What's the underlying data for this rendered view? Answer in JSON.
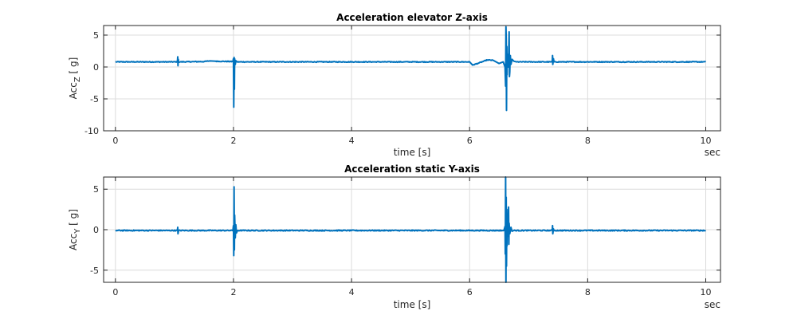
{
  "colors": {
    "line": "#0072BD",
    "grid": "#dcdcdc",
    "axis": "#262626",
    "background": "#ffffff"
  },
  "chart_data": [
    {
      "type": "line",
      "title": "Acceleration elevator Z-axis",
      "xlabel": "time [s]",
      "ylabel_base": "Acc",
      "ylabel_sub": "Z",
      "ylabel_unit": " [ g]",
      "x_unit_label": "sec",
      "xlim": [
        -0.2,
        10.25
      ],
      "ylim": [
        -10,
        6.5
      ],
      "xticks": [
        0,
        2,
        4,
        6,
        8,
        10
      ],
      "yticks": [
        -10,
        -5,
        0,
        5
      ],
      "grid": true,
      "series": [
        {
          "baseline": 0.8,
          "noise": 0.06,
          "points": [
            [
              0,
              0.8
            ],
            [
              1.05,
              0.8
            ],
            [
              1.055,
              1.6
            ],
            [
              1.06,
              0.2
            ],
            [
              1.065,
              1.2
            ],
            [
              1.07,
              0.8
            ],
            [
              1.5,
              0.85
            ],
            [
              1.6,
              0.95
            ],
            [
              1.7,
              0.9
            ],
            [
              1.99,
              0.85
            ],
            [
              2.0,
              1.3
            ],
            [
              2.005,
              -6.3
            ],
            [
              2.01,
              1.5
            ],
            [
              2.015,
              -3.5
            ],
            [
              2.02,
              1.3
            ],
            [
              2.03,
              0.4
            ],
            [
              2.04,
              1.0
            ],
            [
              2.06,
              0.8
            ],
            [
              6.0,
              0.8
            ],
            [
              6.05,
              0.3
            ],
            [
              6.15,
              0.6
            ],
            [
              6.3,
              1.1
            ],
            [
              6.4,
              1.05
            ],
            [
              6.5,
              0.55
            ],
            [
              6.57,
              0.8
            ],
            [
              6.6,
              0.0
            ],
            [
              6.61,
              -3.0
            ],
            [
              6.615,
              6.3
            ],
            [
              6.62,
              4.5
            ],
            [
              6.625,
              -6.8
            ],
            [
              6.63,
              3.2
            ],
            [
              6.635,
              -1.2
            ],
            [
              6.64,
              2.0
            ],
            [
              6.65,
              0.0
            ],
            [
              6.66,
              1.2
            ],
            [
              6.67,
              5.5
            ],
            [
              6.675,
              -1.5
            ],
            [
              6.68,
              -0.8
            ],
            [
              6.685,
              1.0
            ],
            [
              6.69,
              1.8
            ],
            [
              6.7,
              0.4
            ],
            [
              6.72,
              1.2
            ],
            [
              6.75,
              0.9
            ],
            [
              6.8,
              0.8
            ],
            [
              7.4,
              0.8
            ],
            [
              7.405,
              1.8
            ],
            [
              7.41,
              0.4
            ],
            [
              7.42,
              1.3
            ],
            [
              7.43,
              0.8
            ],
            [
              10.0,
              0.8
            ]
          ]
        }
      ]
    },
    {
      "type": "line",
      "title": "Acceleration static Y-axis",
      "xlabel": "time [s]",
      "ylabel_base": "Acc",
      "ylabel_sub": "Y",
      "ylabel_unit": " [ g]",
      "x_unit_label": "sec",
      "xlim": [
        -0.2,
        10.25
      ],
      "ylim": [
        -6.5,
        6.5
      ],
      "xticks": [
        0,
        2,
        4,
        6,
        8,
        10
      ],
      "yticks": [
        -5,
        0,
        5
      ],
      "grid": true,
      "series": [
        {
          "baseline": -0.1,
          "noise": 0.06,
          "points": [
            [
              0,
              -0.1
            ],
            [
              1.05,
              -0.1
            ],
            [
              1.055,
              0.3
            ],
            [
              1.06,
              -0.5
            ],
            [
              1.07,
              -0.1
            ],
            [
              1.99,
              -0.1
            ],
            [
              2.0,
              0.5
            ],
            [
              2.005,
              -3.2
            ],
            [
              2.01,
              5.3
            ],
            [
              2.015,
              -2.5
            ],
            [
              2.02,
              1.8
            ],
            [
              2.03,
              -1.0
            ],
            [
              2.04,
              0.6
            ],
            [
              2.05,
              -0.4
            ],
            [
              2.07,
              -0.1
            ],
            [
              6.58,
              -0.1
            ],
            [
              6.6,
              0.4
            ],
            [
              6.605,
              -3.0
            ],
            [
              6.61,
              6.5
            ],
            [
              6.615,
              -6.5
            ],
            [
              6.62,
              4.0
            ],
            [
              6.625,
              -4.5
            ],
            [
              6.63,
              2.5
            ],
            [
              6.635,
              -2.0
            ],
            [
              6.64,
              1.5
            ],
            [
              6.65,
              -0.8
            ],
            [
              6.66,
              2.8
            ],
            [
              6.665,
              -1.8
            ],
            [
              6.67,
              0.8
            ],
            [
              6.68,
              -0.5
            ],
            [
              6.7,
              0.3
            ],
            [
              6.72,
              -0.2
            ],
            [
              6.75,
              -0.1
            ],
            [
              7.4,
              -0.1
            ],
            [
              7.405,
              0.5
            ],
            [
              7.41,
              -0.5
            ],
            [
              7.42,
              0.1
            ],
            [
              7.43,
              -0.1
            ],
            [
              10.0,
              -0.1
            ]
          ]
        }
      ]
    }
  ]
}
